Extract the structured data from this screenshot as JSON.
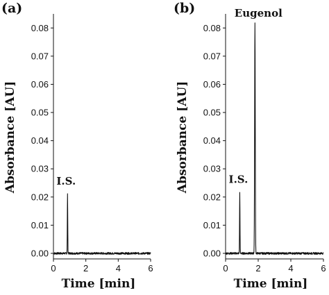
{
  "chart_data": [
    {
      "type": "line",
      "panel_label": "(a)",
      "xlabel": "Time [min]",
      "ylabel": "Absorbance [AU]",
      "xlim": [
        0,
        6
      ],
      "ylim": [
        0,
        0.085
      ],
      "x_ticks": [
        0,
        2,
        4,
        6
      ],
      "y_ticks": [
        "0.00",
        "0.01",
        "0.02",
        "0.03",
        "0.04",
        "0.05",
        "0.06",
        "0.07",
        "0.08"
      ],
      "baseline": 0.0,
      "peaks": [
        {
          "label": "I.S.",
          "time": 0.87,
          "height": 0.021,
          "width": 0.03
        }
      ]
    },
    {
      "type": "line",
      "panel_label": "(b)",
      "xlabel": "Time [min]",
      "ylabel": "Absorbance [AU]",
      "xlim": [
        0,
        6
      ],
      "ylim": [
        0,
        0.085
      ],
      "x_ticks": [
        0,
        2,
        4,
        6
      ],
      "y_ticks": [
        "0.00",
        "0.01",
        "0.02",
        "0.03",
        "0.04",
        "0.05",
        "0.06",
        "0.07",
        "0.08"
      ],
      "baseline": 0.0,
      "peaks": [
        {
          "label": "I.S.",
          "time": 0.87,
          "height": 0.0215,
          "width": 0.03
        },
        {
          "label": "Eugenol",
          "time": 1.8,
          "height": 0.0815,
          "width": 0.045
        }
      ]
    }
  ]
}
